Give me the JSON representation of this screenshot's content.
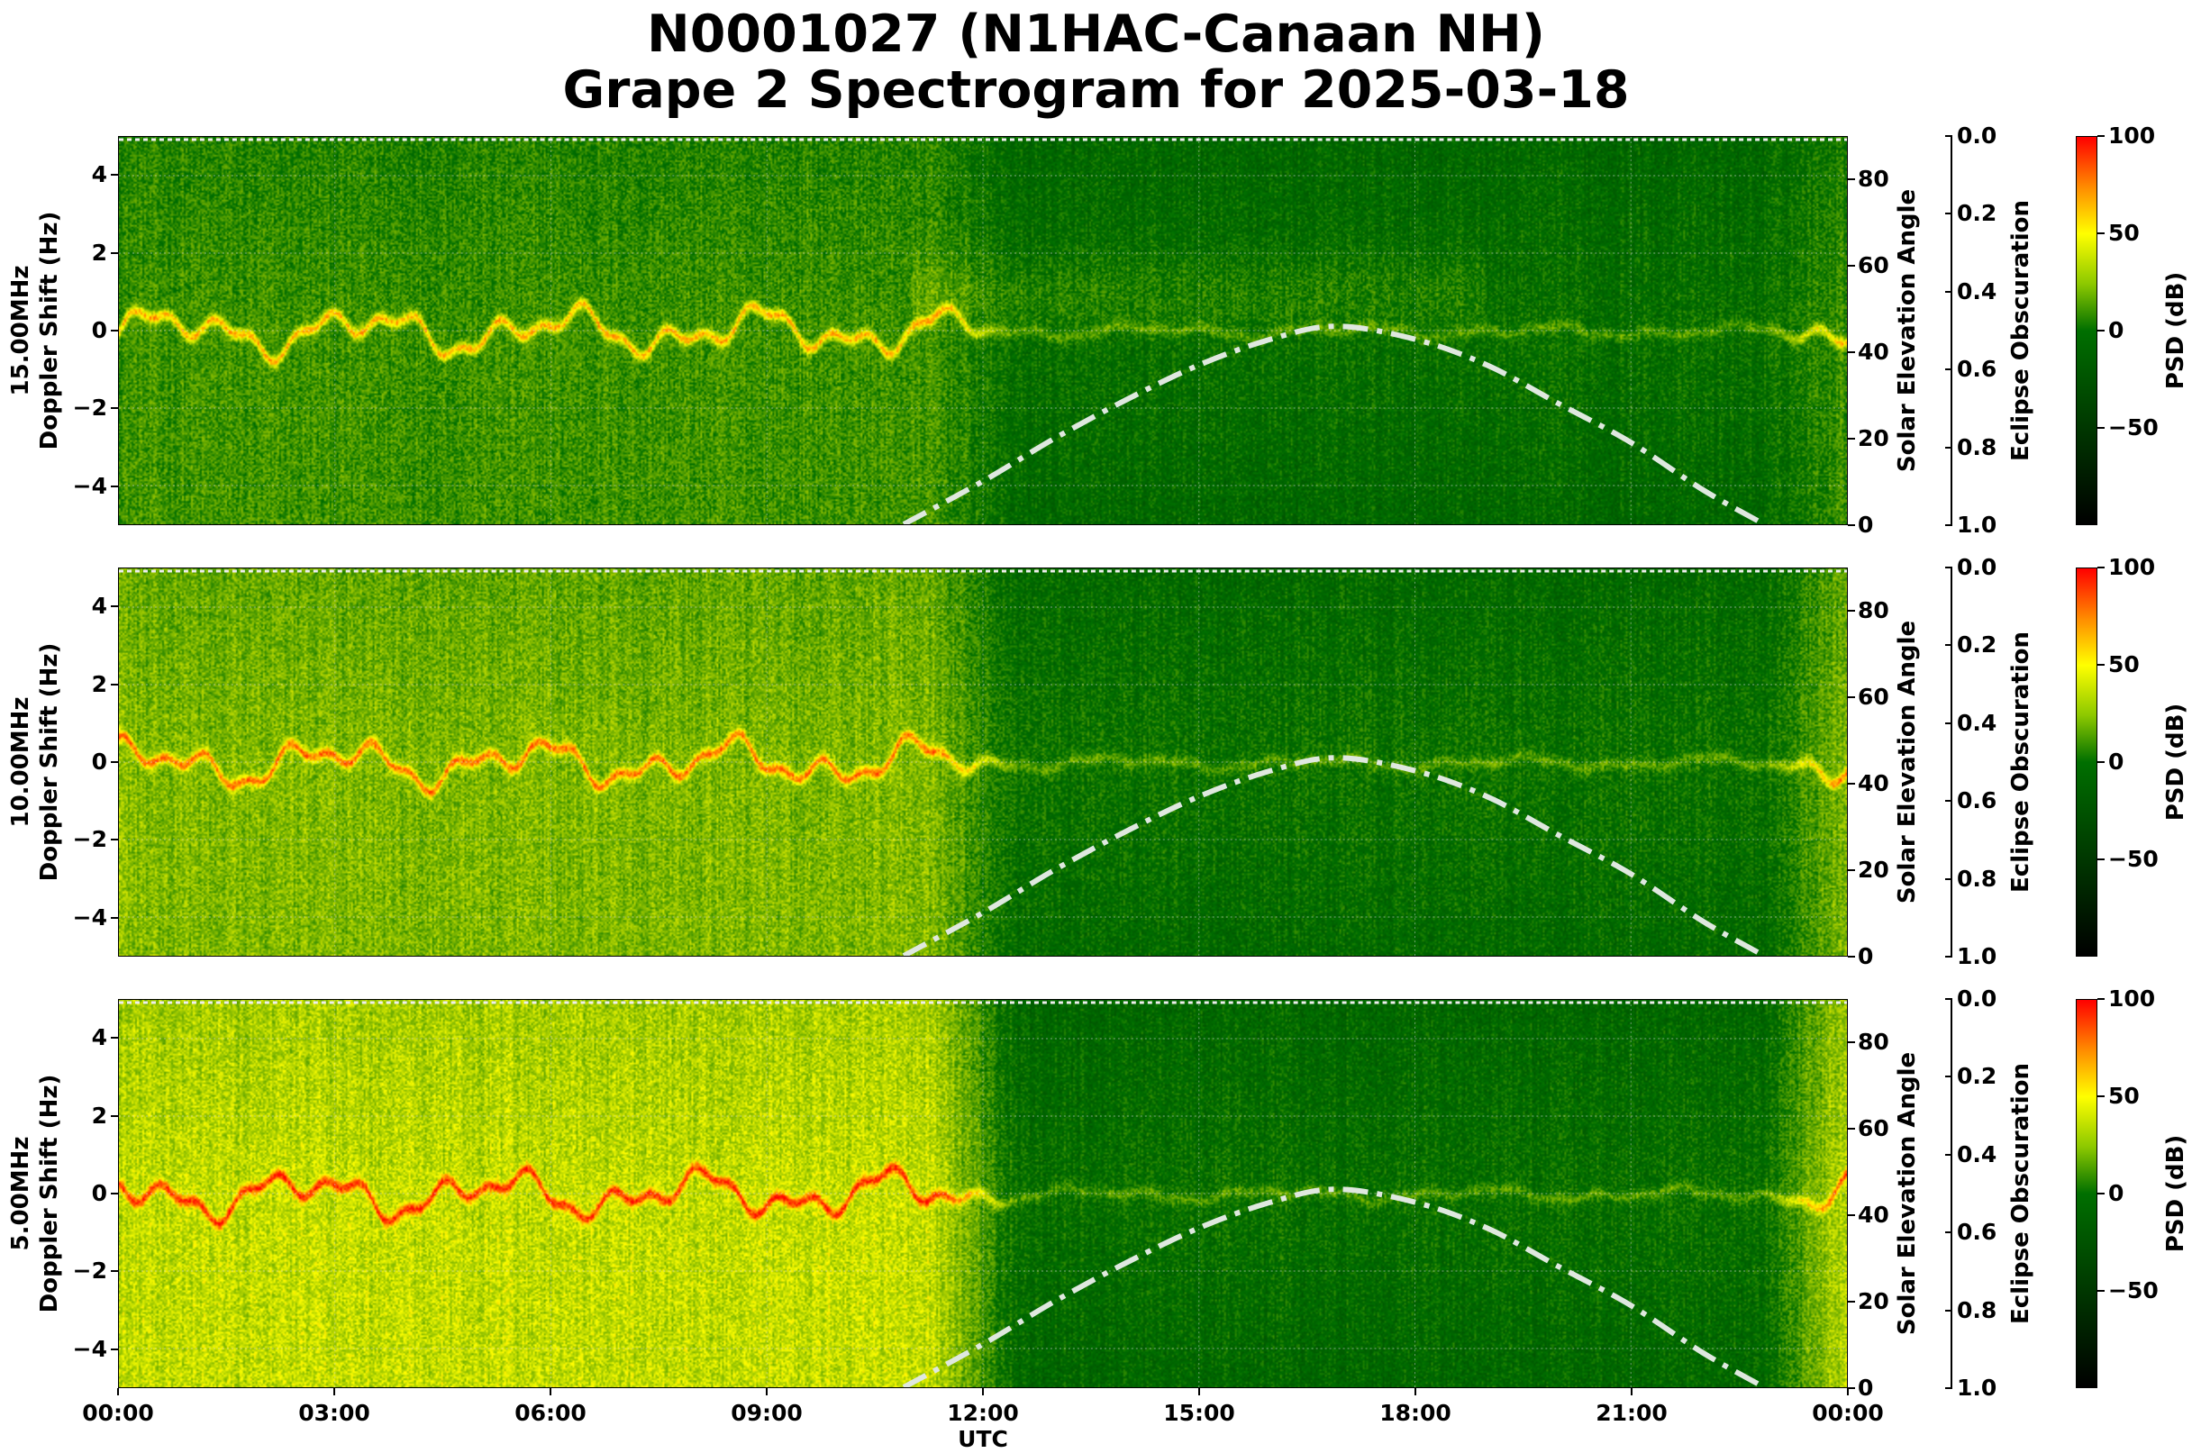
{
  "title": {
    "line1": "N0001027 (N1HAC-Canaan NH)",
    "line2": "Grape 2 Spectrogram for 2025-03-18"
  },
  "chart_data": {
    "type": "heatmap",
    "xlabel": "UTC",
    "x_ticks": [
      "00:00",
      "03:00",
      "06:00",
      "09:00",
      "12:00",
      "15:00",
      "18:00",
      "21:00",
      "00:00"
    ],
    "xlim_hours": [
      0,
      24
    ],
    "ylabel": "Doppler Shift (Hz)",
    "ylim": [
      -5,
      5
    ],
    "y_ticks": [
      "−4",
      "−2",
      "0",
      "2",
      "4"
    ],
    "grid": true,
    "right_axis": {
      "label": "Solar Elevation Angle",
      "ylim": [
        0,
        90
      ],
      "ticks": [
        "0",
        "20",
        "40",
        "60",
        "80"
      ]
    },
    "eclipse_axis": {
      "label": "Eclipse Obscuration",
      "ylim": [
        1.0,
        0.0
      ],
      "ticks": [
        "0.0",
        "0.2",
        "0.4",
        "0.6",
        "0.8",
        "1.0"
      ]
    },
    "colorbar": {
      "label": "PSD (dB)",
      "range": [
        -100,
        100
      ],
      "ticks": [
        "−50",
        "0",
        "50",
        "100"
      ],
      "colors": [
        "#000000",
        "#006f00",
        "#ffff00",
        "#ff0000"
      ]
    },
    "solar_elevation": {
      "hours": [
        10.9,
        12,
        13,
        14,
        15,
        16,
        16.9,
        18,
        19,
        20,
        21,
        22,
        22.85
      ],
      "degrees": [
        0,
        10,
        20,
        29,
        37,
        43,
        46,
        43,
        37,
        28,
        19,
        8,
        0
      ],
      "color": "#dfe8df",
      "style": "dash-dot"
    },
    "panels": [
      {
        "frequency": "15.00MHz",
        "night_level": 12,
        "day_level": -2
      },
      {
        "frequency": "10.00MHz",
        "night_level": 25,
        "day_level": 0
      },
      {
        "frequency": "5.00MHz",
        "night_level": 38,
        "day_level": -2
      }
    ]
  }
}
